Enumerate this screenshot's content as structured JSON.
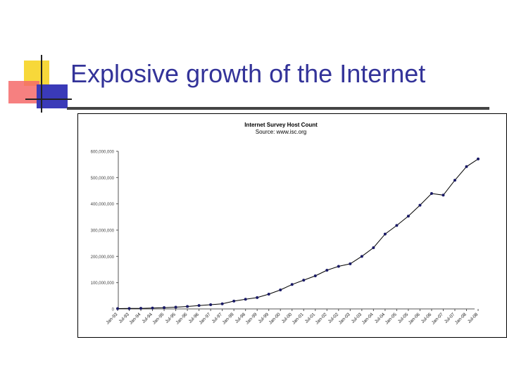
{
  "slide": {
    "title": "Explosive growth of the Internet",
    "accent_color": "#333399"
  },
  "chart_data": {
    "type": "line",
    "title": "Internet Survey Host Count",
    "subtitle": "Source: www.isc.org",
    "xlabel": "",
    "ylabel": "",
    "ylim": [
      0,
      600000000
    ],
    "yticks": [
      0,
      100000000,
      200000000,
      300000000,
      400000000,
      500000000,
      600000000
    ],
    "ytick_labels": [
      "0",
      "100,000,000",
      "200,000,000",
      "300,000,000",
      "400,000,000",
      "500,000,000",
      "600,000,000"
    ],
    "grid": false,
    "legend": "none",
    "line_color": "#000000",
    "marker_color": "#1a1a66",
    "categories": [
      "Jan-93",
      "Jul-93",
      "Jan-94",
      "Jul-94",
      "Jan-95",
      "Jul-95",
      "Jan-96",
      "Jul-96",
      "Jan-97",
      "Jul-97",
      "Jan-98",
      "Jul-98",
      "Jan-99",
      "Jul-99",
      "Jan-00",
      "Jul-00",
      "Jan-01",
      "Jul-01",
      "Jan-02",
      "Jul-02",
      "Jan-03",
      "Jul-03",
      "Jan-04",
      "Jul-04",
      "Jan-05",
      "Jul-05",
      "Jan-06",
      "Jul-06",
      "Jan-07",
      "Jul-07",
      "Jan-08",
      "Jul-08"
    ],
    "series": [
      {
        "values": [
          1300000,
          1800000,
          2200000,
          3200000,
          4900000,
          6600000,
          9500000,
          12900000,
          16100000,
          19500000,
          29700000,
          36700000,
          43200000,
          56200000,
          72400000,
          93000000,
          109600000,
          125900000,
          147300000,
          162100000,
          171600000,
          200000000,
          233100000,
          285100000,
          317600000,
          353300000,
          394900000,
          439300000,
          433200000,
          489800000,
          541700000,
          570900000
        ]
      }
    ]
  }
}
